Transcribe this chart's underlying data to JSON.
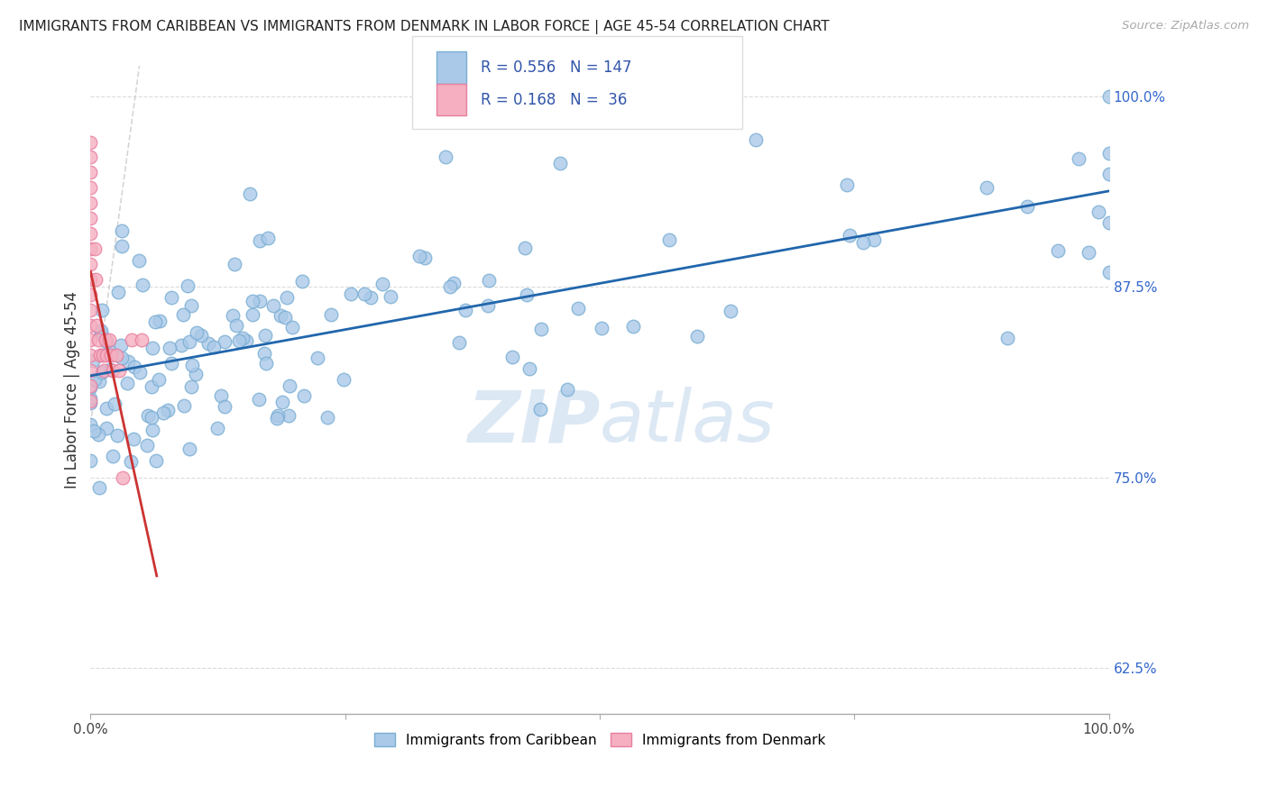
{
  "title": "IMMIGRANTS FROM CARIBBEAN VS IMMIGRANTS FROM DENMARK IN LABOR FORCE | AGE 45-54 CORRELATION CHART",
  "source": "Source: ZipAtlas.com",
  "ylabel": "In Labor Force | Age 45-54",
  "xlim": [
    0.0,
    1.0
  ],
  "ylim": [
    0.595,
    1.02
  ],
  "yticks": [
    0.625,
    0.75,
    0.875,
    1.0
  ],
  "ytick_labels": [
    "62.5%",
    "75.0%",
    "87.5%",
    "100.0%"
  ],
  "caribbean_R": 0.556,
  "caribbean_N": 147,
  "denmark_R": 0.168,
  "denmark_N": 36,
  "blue_color": "#aac9e8",
  "blue_edge": "#7aaed4",
  "pink_color": "#f5afc0",
  "pink_edge": "#e87fa0",
  "blue_line_color": "#2166ac",
  "pink_line_color": "#cc3333",
  "watermark_color": "#dce8f4",
  "title_color": "#222222",
  "label_color": "#3355aa",
  "right_tick_color": "#3366cc",
  "background_color": "#ffffff",
  "grid_color": "#cccccc",
  "ref_line_color": "#cccccc"
}
